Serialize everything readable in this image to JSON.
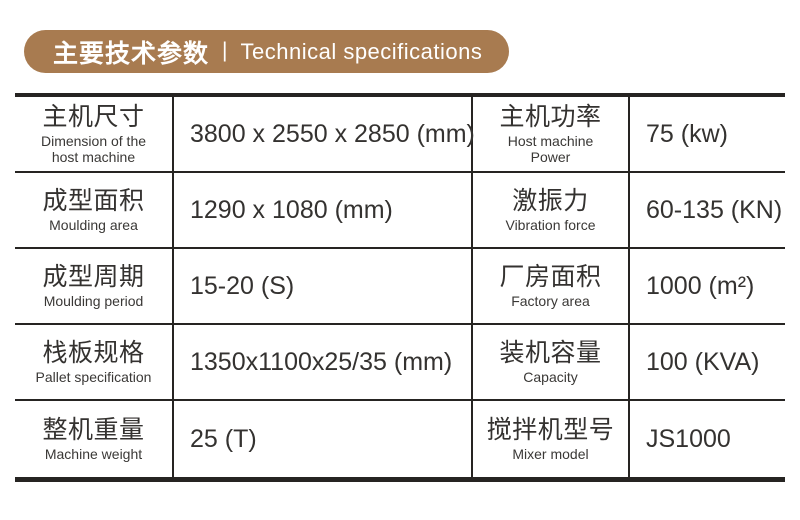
{
  "header": {
    "title_zh": "主要技术参数",
    "separator": "|",
    "title_en": "Technical specifications",
    "bg_color": "#a87b50",
    "text_color": "#ffffff"
  },
  "table": {
    "border_color": "#262422",
    "rows": [
      {
        "left": {
          "zh": "主机尺寸",
          "en": "Dimension of the\nhost machine",
          "value": "3800 x 2550 x 2850 (mm)"
        },
        "right": {
          "zh": "主机功率",
          "en": "Host machine\nPower",
          "value": "75 (kw)"
        }
      },
      {
        "left": {
          "zh": "成型面积",
          "en": "Moulding area",
          "value": "1290 x 1080 (mm)"
        },
        "right": {
          "zh": "激振力",
          "en": "Vibration force",
          "value": "60-135 (KN)"
        }
      },
      {
        "left": {
          "zh": "成型周期",
          "en": "Moulding period",
          "value": "15-20 (S)"
        },
        "right": {
          "zh": "厂房面积",
          "en": "Factory area",
          "value": "1000 (m²)"
        }
      },
      {
        "left": {
          "zh": "栈板规格",
          "en": "Pallet specification",
          "value": "1350x1100x25/35 (mm)"
        },
        "right": {
          "zh": "装机容量",
          "en": "Capacity",
          "value": "100 (KVA)"
        }
      },
      {
        "left": {
          "zh": "整机重量",
          "en": "Machine weight",
          "value": "25 (T)"
        },
        "right": {
          "zh": "搅拌机型号",
          "en": "Mixer model",
          "value": "JS1000"
        }
      }
    ]
  }
}
